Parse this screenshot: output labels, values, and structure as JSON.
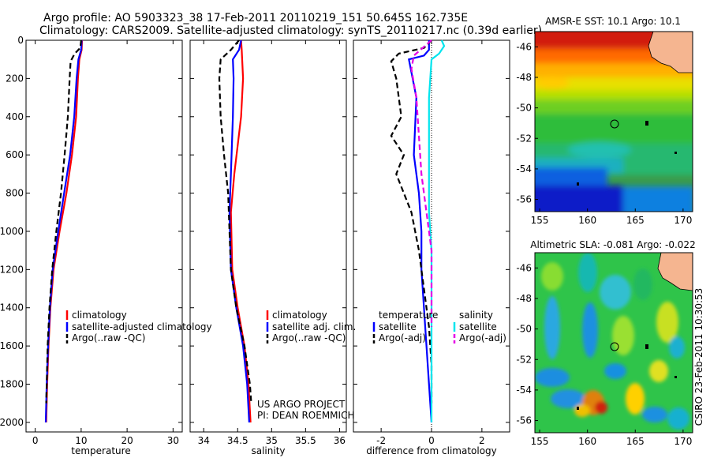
{
  "header": {
    "line1": "Argo profile: AO 5903323_38 17-Feb-2011 20110219_151 50.645S 162.735E",
    "line2": "Climatology: CARS2009. Satellite-adjusted climatology: synTS_20110217.nc (0.39d earlier)"
  },
  "credits": {
    "project": "US ARGO PROJECT",
    "pi": "PI: DEAN ROEMMICH"
  },
  "timestamp": "CSIRO 23-Feb-2011 10:30:53",
  "colors": {
    "red": "#ff0000",
    "blue": "#0000ff",
    "black": "#000000",
    "cyan": "#00e5ee",
    "magenta": "#e600e6",
    "land": "#f5b590"
  },
  "chart_data": [
    {
      "type": "line",
      "xlabel": "temperature",
      "xlim": [
        -2,
        32
      ],
      "ylim": [
        2050,
        0
      ],
      "xticks": [
        0,
        10,
        20,
        30
      ],
      "yticks": [
        0,
        200,
        400,
        600,
        800,
        1000,
        1200,
        1400,
        1600,
        1800,
        2000
      ],
      "legend": [
        "climatology",
        "satellite-adjusted climatology",
        "Argo(..raw -QC)"
      ],
      "series": [
        {
          "color": "red",
          "dash": "solid",
          "points": [
            [
              10.2,
              0
            ],
            [
              10.1,
              50
            ],
            [
              9.6,
              100
            ],
            [
              9.3,
              200
            ],
            [
              8.9,
              400
            ],
            [
              8.0,
              600
            ],
            [
              6.8,
              800
            ],
            [
              5.3,
              1000
            ],
            [
              4.0,
              1200
            ],
            [
              3.3,
              1400
            ],
            [
              2.9,
              1600
            ],
            [
              2.6,
              1800
            ],
            [
              2.4,
              2000
            ]
          ]
        },
        {
          "color": "blue",
          "dash": "solid",
          "points": [
            [
              10.1,
              0
            ],
            [
              10.0,
              50
            ],
            [
              9.4,
              100
            ],
            [
              9.0,
              200
            ],
            [
              8.5,
              400
            ],
            [
              7.6,
              600
            ],
            [
              6.3,
              800
            ],
            [
              5.0,
              1000
            ],
            [
              3.8,
              1200
            ],
            [
              3.2,
              1400
            ],
            [
              2.8,
              1600
            ],
            [
              2.5,
              1800
            ],
            [
              2.3,
              2000
            ]
          ]
        },
        {
          "color": "black",
          "dash": "dash",
          "points": [
            [
              10.0,
              0
            ],
            [
              9.8,
              40
            ],
            [
              8.6,
              70
            ],
            [
              7.7,
              110
            ],
            [
              7.5,
              200
            ],
            [
              7.1,
              400
            ],
            [
              6.4,
              600
            ],
            [
              5.6,
              800
            ],
            [
              4.6,
              1000
            ],
            [
              3.7,
              1200
            ],
            [
              3.1,
              1400
            ],
            [
              2.7,
              1600
            ],
            [
              2.5,
              1800
            ],
            [
              2.4,
              1900
            ]
          ]
        }
      ]
    },
    {
      "type": "line",
      "xlabel": "salinity",
      "xlim": [
        33.8,
        36.1
      ],
      "ylim": [
        2050,
        0
      ],
      "xticks": [
        34,
        34.5,
        35,
        35.5,
        36
      ],
      "legend": [
        "climatology",
        "satellite adj. clim.",
        "Argo(..raw -QC)"
      ],
      "series": [
        {
          "color": "red",
          "dash": "solid",
          "points": [
            [
              34.55,
              0
            ],
            [
              34.56,
              50
            ],
            [
              34.58,
              200
            ],
            [
              34.55,
              400
            ],
            [
              34.45,
              700
            ],
            [
              34.4,
              900
            ],
            [
              34.42,
              1200
            ],
            [
              34.5,
              1400
            ],
            [
              34.6,
              1600
            ],
            [
              34.66,
              1800
            ],
            [
              34.69,
              2000
            ]
          ]
        },
        {
          "color": "blue",
          "dash": "solid",
          "points": [
            [
              34.55,
              0
            ],
            [
              34.52,
              50
            ],
            [
              34.43,
              100
            ],
            [
              34.44,
              200
            ],
            [
              34.43,
              400
            ],
            [
              34.4,
              700
            ],
            [
              34.38,
              900
            ],
            [
              34.4,
              1200
            ],
            [
              34.48,
              1400
            ],
            [
              34.58,
              1600
            ],
            [
              34.64,
              1800
            ],
            [
              34.67,
              2000
            ]
          ]
        },
        {
          "color": "black",
          "dash": "dash",
          "points": [
            [
              34.52,
              0
            ],
            [
              34.4,
              50
            ],
            [
              34.25,
              100
            ],
            [
              34.23,
              200
            ],
            [
              34.25,
              400
            ],
            [
              34.3,
              600
            ],
            [
              34.36,
              800
            ],
            [
              34.38,
              1000
            ],
            [
              34.4,
              1200
            ],
            [
              34.48,
              1400
            ],
            [
              34.6,
              1600
            ],
            [
              34.68,
              1800
            ],
            [
              34.7,
              1900
            ]
          ]
        }
      ]
    },
    {
      "type": "line",
      "xlabel": "difference from climatology",
      "xlim": [
        -3.1,
        3.1
      ],
      "ylim": [
        2050,
        0
      ],
      "xticks": [
        -2,
        0,
        2
      ],
      "legend_groups": [
        {
          "title": "temperature",
          "entries": [
            "satellite",
            "Argo(-adj)"
          ]
        },
        {
          "title": "salinity",
          "entries": [
            "satellite",
            "Argo(-adj)"
          ]
        }
      ],
      "series": [
        {
          "color": "blue",
          "dash": "solid",
          "points": [
            [
              -0.1,
              0
            ],
            [
              -0.1,
              50
            ],
            [
              -0.3,
              80
            ],
            [
              -0.9,
              100
            ],
            [
              -0.6,
              300
            ],
            [
              -0.7,
              600
            ],
            [
              -0.5,
              800
            ],
            [
              -0.4,
              1000
            ],
            [
              -0.4,
              1200
            ],
            [
              -0.3,
              1400
            ],
            [
              -0.2,
              1600
            ],
            [
              -0.1,
              1800
            ],
            [
              0,
              2000
            ]
          ]
        },
        {
          "color": "black",
          "dash": "dash",
          "points": [
            [
              0,
              0
            ],
            [
              -0.3,
              40
            ],
            [
              -1.3,
              70
            ],
            [
              -1.6,
              110
            ],
            [
              -1.4,
              200
            ],
            [
              -1.2,
              400
            ],
            [
              -1.6,
              500
            ],
            [
              -1.1,
              600
            ],
            [
              -1.4,
              700
            ],
            [
              -0.8,
              900
            ],
            [
              -0.5,
              1100
            ],
            [
              -0.3,
              1300
            ],
            [
              -0.1,
              1500
            ],
            [
              0,
              1700
            ],
            [
              0,
              1900
            ]
          ]
        },
        {
          "color": "cyan",
          "dash": "solid",
          "points": [
            [
              0.4,
              0
            ],
            [
              0.5,
              30
            ],
            [
              0.3,
              70
            ],
            [
              0,
              100
            ],
            [
              -0.1,
              300
            ],
            [
              -0.1,
              500
            ],
            [
              -0.1,
              700
            ],
            [
              -0.1,
              900
            ],
            [
              0,
              1100
            ],
            [
              0,
              1300
            ],
            [
              0,
              1500
            ],
            [
              0,
              1700
            ],
            [
              0,
              2000
            ]
          ]
        },
        {
          "color": "magenta",
          "dash": "dash",
          "points": [
            [
              0,
              0
            ],
            [
              -0.7,
              80
            ],
            [
              -0.8,
              150
            ],
            [
              -0.6,
              300
            ],
            [
              -0.5,
              500
            ],
            [
              -0.4,
              700
            ],
            [
              -0.2,
              900
            ],
            [
              0,
              1100
            ],
            [
              0,
              1300
            ],
            [
              0,
              1500
            ]
          ]
        }
      ]
    },
    {
      "type": "heatmap",
      "title": "AMSR-E SST: 10.1  Argo: 10.1",
      "xticks": [
        155,
        160,
        165,
        170
      ],
      "yticks": [
        -46,
        -48,
        -50,
        -52,
        -54,
        -56
      ],
      "xlim": [
        154.5,
        171
      ],
      "ylim": [
        -56.8,
        -45
      ]
    },
    {
      "type": "heatmap",
      "title": "Altimetric SLA: -0.081  Argo: -0.022",
      "xticks": [
        155,
        160,
        165,
        170
      ],
      "yticks": [
        -46,
        -48,
        -50,
        -52,
        -54,
        -56
      ],
      "xlim": [
        154.5,
        171
      ],
      "ylim": [
        -56.8,
        -45
      ]
    }
  ]
}
